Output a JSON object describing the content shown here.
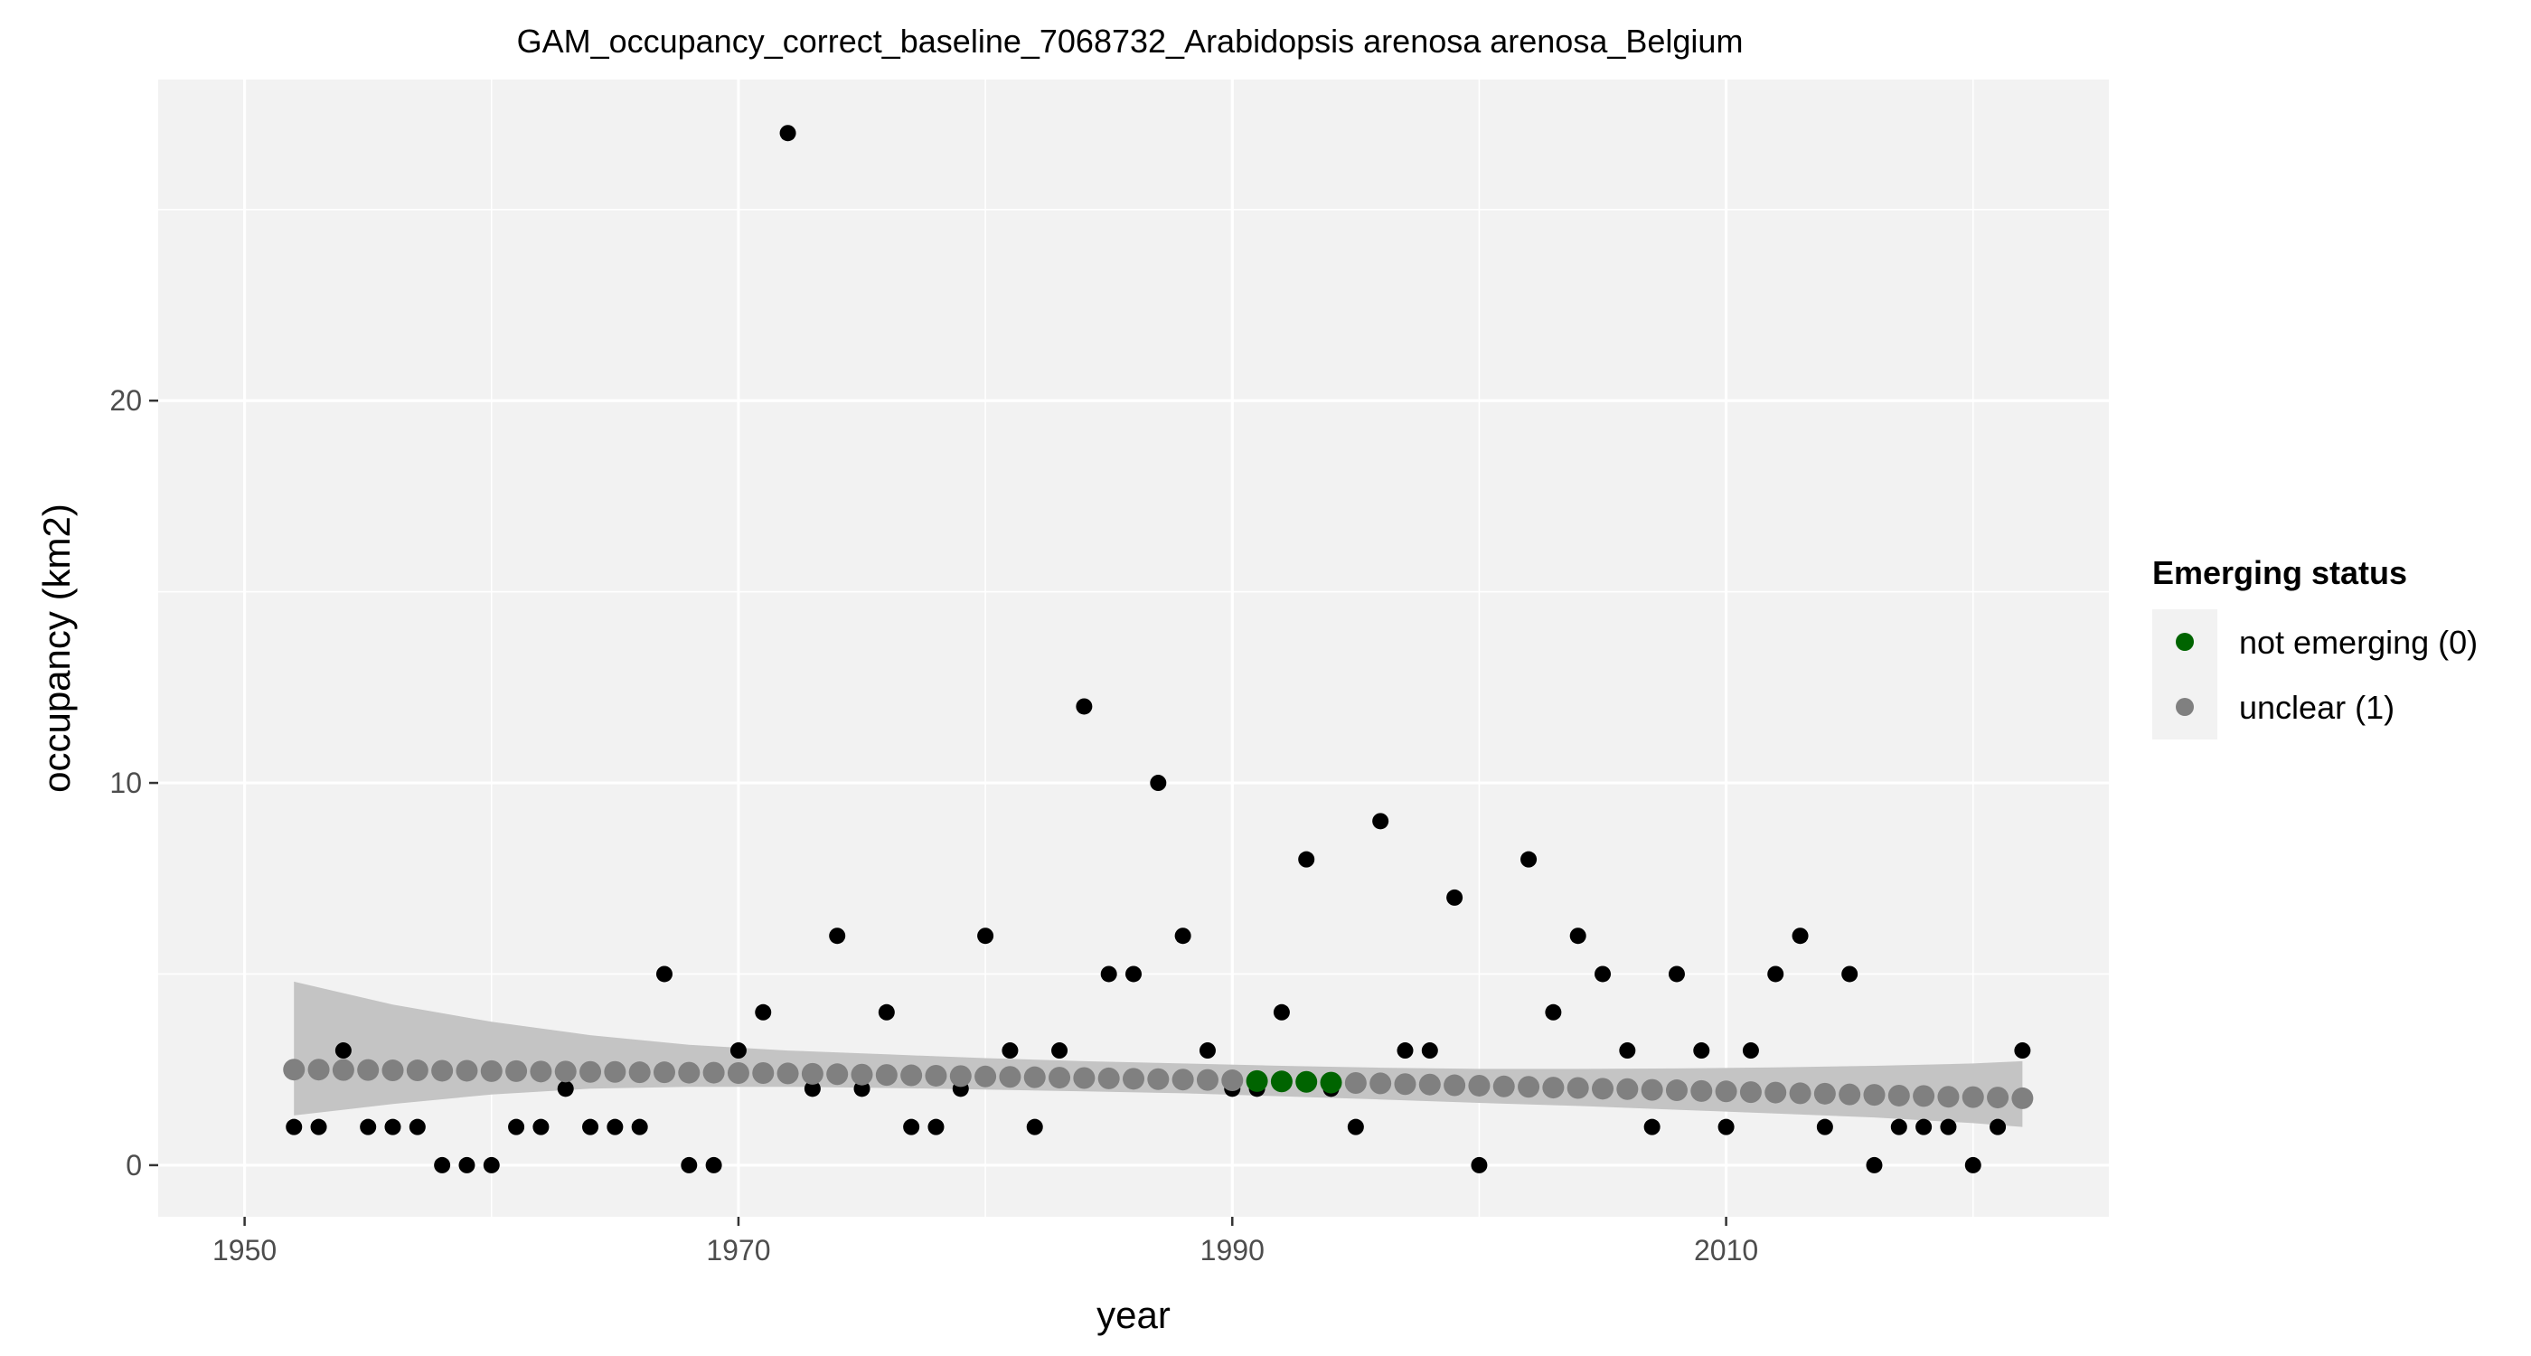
{
  "chart_data": {
    "type": "scatter",
    "title": "GAM_occupancy_correct_baseline_7068732_Arabidopsis arenosa arenosa_Belgium",
    "xlabel": "year",
    "ylabel": "occupancy (km2)",
    "xlim": [
      1946.5,
      2025.5
    ],
    "ylim": [
      -1.35,
      28.4
    ],
    "x_ticks": [
      1950,
      1970,
      1990,
      2010
    ],
    "y_ticks": [
      0,
      10,
      20
    ],
    "grid": true,
    "legend": {
      "title": "Emerging status",
      "position": "right",
      "entries": [
        {
          "label": "not emerging (0)",
          "color": "#006400"
        },
        {
          "label": "unclear (1)",
          "color": "#808080"
        }
      ]
    },
    "observed": {
      "color": "#000000",
      "x": [
        1952,
        1953,
        1954,
        1955,
        1956,
        1957,
        1958,
        1959,
        1960,
        1961,
        1962,
        1963,
        1964,
        1965,
        1966,
        1967,
        1968,
        1969,
        1970,
        1971,
        1972,
        1973,
        1974,
        1975,
        1976,
        1977,
        1978,
        1979,
        1980,
        1981,
        1982,
        1983,
        1984,
        1985,
        1986,
        1987,
        1988,
        1989,
        1990,
        1991,
        1992,
        1993,
        1994,
        1995,
        1996,
        1997,
        1998,
        1999,
        2000,
        2001,
        2002,
        2003,
        2004,
        2005,
        2006,
        2007,
        2008,
        2009,
        2010,
        2011,
        2012,
        2013,
        2014,
        2015,
        2016,
        2017,
        2018,
        2019,
        2020,
        2021,
        2022
      ],
      "y": [
        1,
        1,
        3,
        1,
        1,
        1,
        0,
        0,
        0,
        1,
        1,
        2,
        1,
        1,
        1,
        5,
        0,
        0,
        3,
        4,
        27,
        2,
        6,
        2,
        4,
        1,
        1,
        2,
        6,
        3,
        1,
        3,
        12,
        5,
        5,
        10,
        6,
        3,
        2,
        2,
        4,
        8,
        2,
        1,
        9,
        3,
        3,
        7,
        0,
        2,
        8,
        4,
        6,
        5,
        3,
        1,
        5,
        3,
        1,
        3,
        5,
        6,
        1,
        5,
        0,
        1,
        1,
        1,
        0,
        1,
        3
      ]
    },
    "fit": {
      "x": [
        1952,
        1953,
        1954,
        1955,
        1956,
        1957,
        1958,
        1959,
        1960,
        1961,
        1962,
        1963,
        1964,
        1965,
        1966,
        1967,
        1968,
        1969,
        1970,
        1971,
        1972,
        1973,
        1974,
        1975,
        1976,
        1977,
        1978,
        1979,
        1980,
        1981,
        1982,
        1983,
        1984,
        1985,
        1986,
        1987,
        1988,
        1989,
        1990,
        1991,
        1992,
        1993,
        1994,
        1995,
        1996,
        1997,
        1998,
        1999,
        2000,
        2001,
        2002,
        2003,
        2004,
        2005,
        2006,
        2007,
        2008,
        2009,
        2010,
        2011,
        2012,
        2013,
        2014,
        2015,
        2016,
        2017,
        2018,
        2019,
        2020,
        2021,
        2022
      ],
      "y": [
        2.5,
        2.5,
        2.49,
        2.49,
        2.48,
        2.48,
        2.47,
        2.47,
        2.46,
        2.46,
        2.45,
        2.45,
        2.44,
        2.44,
        2.43,
        2.43,
        2.42,
        2.42,
        2.41,
        2.41,
        2.4,
        2.39,
        2.38,
        2.37,
        2.36,
        2.35,
        2.34,
        2.33,
        2.32,
        2.31,
        2.3,
        2.29,
        2.28,
        2.27,
        2.26,
        2.25,
        2.24,
        2.23,
        2.22,
        2.2,
        2.19,
        2.18,
        2.16,
        2.15,
        2.14,
        2.12,
        2.11,
        2.09,
        2.08,
        2.06,
        2.05,
        2.03,
        2.02,
        2.0,
        1.99,
        1.97,
        1.96,
        1.94,
        1.93,
        1.91,
        1.9,
        1.88,
        1.87,
        1.85,
        1.84,
        1.82,
        1.81,
        1.79,
        1.78,
        1.77,
        1.75
      ],
      "status": [
        "unclear",
        "unclear",
        "unclear",
        "unclear",
        "unclear",
        "unclear",
        "unclear",
        "unclear",
        "unclear",
        "unclear",
        "unclear",
        "unclear",
        "unclear",
        "unclear",
        "unclear",
        "unclear",
        "unclear",
        "unclear",
        "unclear",
        "unclear",
        "unclear",
        "unclear",
        "unclear",
        "unclear",
        "unclear",
        "unclear",
        "unclear",
        "unclear",
        "unclear",
        "unclear",
        "unclear",
        "unclear",
        "unclear",
        "unclear",
        "unclear",
        "unclear",
        "unclear",
        "unclear",
        "unclear",
        "not_emerging",
        "not_emerging",
        "not_emerging",
        "not_emerging",
        "unclear",
        "unclear",
        "unclear",
        "unclear",
        "unclear",
        "unclear",
        "unclear",
        "unclear",
        "unclear",
        "unclear",
        "unclear",
        "unclear",
        "unclear",
        "unclear",
        "unclear",
        "unclear",
        "unclear",
        "unclear",
        "unclear",
        "unclear",
        "unclear",
        "unclear",
        "unclear",
        "unclear",
        "unclear",
        "unclear",
        "unclear",
        "unclear"
      ],
      "ci_x": [
        1952,
        1956,
        1960,
        1964,
        1968,
        1972,
        1976,
        1980,
        1984,
        1988,
        1992,
        1996,
        2000,
        2004,
        2008,
        2012,
        2016,
        2020,
        2022
      ],
      "ci_lower": [
        1.3,
        1.6,
        1.85,
        2.0,
        2.05,
        2.05,
        2.02,
        1.98,
        1.93,
        1.88,
        1.8,
        1.72,
        1.63,
        1.55,
        1.45,
        1.35,
        1.25,
        1.1,
        1.0
      ],
      "ci_upper": [
        4.8,
        4.2,
        3.75,
        3.4,
        3.15,
        3.0,
        2.9,
        2.8,
        2.72,
        2.66,
        2.6,
        2.55,
        2.52,
        2.52,
        2.53,
        2.56,
        2.6,
        2.66,
        2.72
      ],
      "ci_color": "#c4c4c4"
    },
    "colors": {
      "panel_bg": "#f2f2f2",
      "grid_major": "#ffffff",
      "not_emerging": "#006400",
      "unclear": "#808080"
    }
  }
}
